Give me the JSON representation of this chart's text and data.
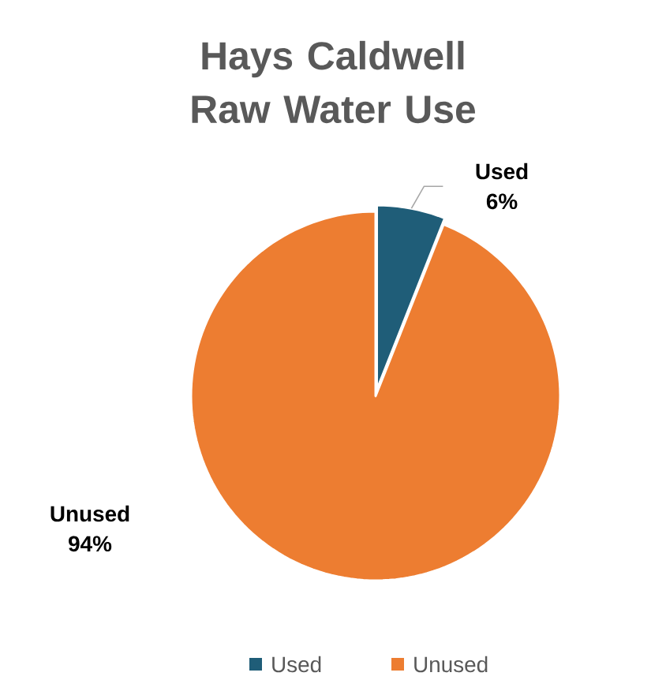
{
  "chart_data": {
    "type": "pie",
    "title": "Hays Caldwell Raw Water Use",
    "categories": [
      "Used",
      "Unused"
    ],
    "values": [
      6,
      94
    ],
    "colors": [
      "#1f5d78",
      "#ed7d31"
    ],
    "value_labels": [
      "6%",
      "94%"
    ],
    "legend": "bottom"
  }
}
